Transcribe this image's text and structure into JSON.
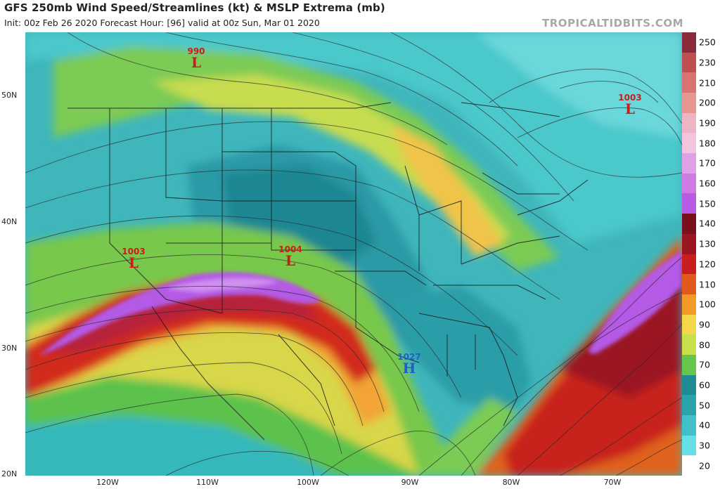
{
  "header": {
    "title": "GFS 250mb Wind Speed/Streamlines (kt) & MSLP Extrema (mb)",
    "subtitle": "Init: 00z Feb 26 2020   Forecast Hour: [96]   valid at 00z Sun, Mar 01 2020",
    "brand": "TROPICALTIDBITS.COM"
  },
  "axes": {
    "lat_labels": [
      "50N",
      "40N",
      "30N",
      "20N"
    ],
    "lon_labels": [
      "120W",
      "110W",
      "100W",
      "90W",
      "80W",
      "70W"
    ]
  },
  "colorbar": {
    "levels": [
      "250",
      "230",
      "210",
      "200",
      "190",
      "180",
      "170",
      "160",
      "150",
      "140",
      "130",
      "120",
      "110",
      "100",
      "90",
      "80",
      "70",
      "60",
      "50",
      "40",
      "30",
      "20"
    ],
    "colors": [
      "#8a2a3a",
      "#c0504f",
      "#d8736f",
      "#e6958f",
      "#eeb4c4",
      "#f2c4df",
      "#e0a0e8",
      "#d07ae4",
      "#b85ae4",
      "#7a0f1e",
      "#9a1620",
      "#c81e1e",
      "#e05a1c",
      "#f39a26",
      "#f4d64a",
      "#c9e04a",
      "#66c64c",
      "#1f8c94",
      "#2aa3ad",
      "#42c0c9",
      "#66e0e6",
      "#ffffff"
    ]
  },
  "pressure_centers": [
    {
      "type": "L",
      "value": "990",
      "color": "#cc1b1b"
    },
    {
      "type": "L",
      "value": "1003",
      "color": "#cc1b1b"
    },
    {
      "type": "L",
      "value": "1003",
      "color": "#cc1b1b"
    },
    {
      "type": "L",
      "value": "1004",
      "color": "#cc1b1b"
    },
    {
      "type": "H",
      "value": "1027",
      "color": "#1f5fcc"
    }
  ]
}
